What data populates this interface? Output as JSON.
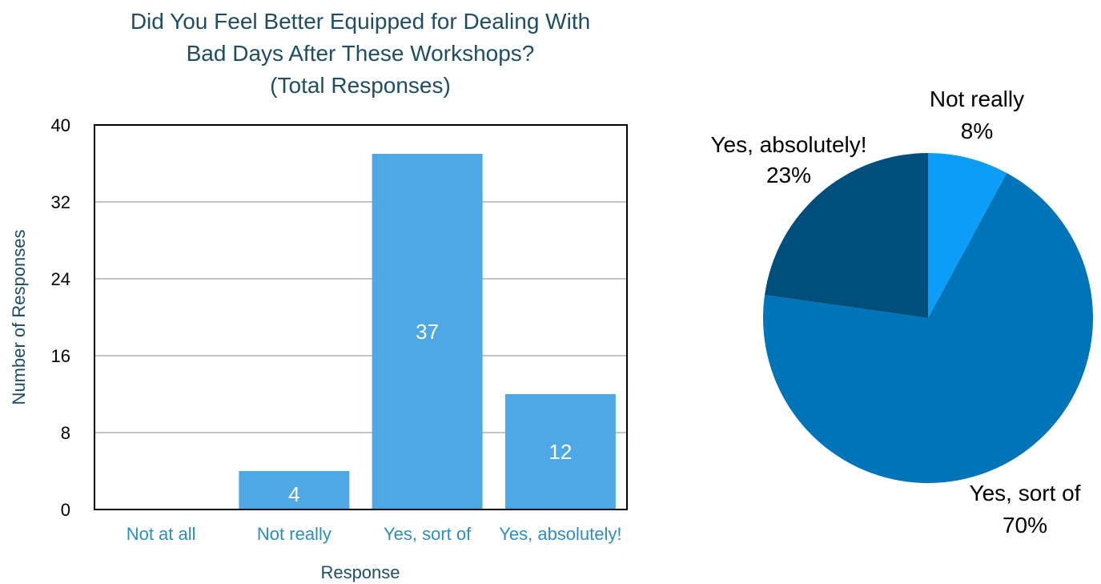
{
  "chart_data": [
    {
      "type": "bar",
      "title_lines": [
        "Did You Feel Better Equipped for Dealing With",
        "Bad Days After These Workshops?",
        "(Total Responses)"
      ],
      "xlabel": "Response",
      "ylabel": "Number of Responses",
      "categories": [
        "Not at all",
        "Not really",
        "Yes, sort of",
        "Yes, absolutely!"
      ],
      "values": [
        0,
        4,
        37,
        12
      ],
      "data_labels": [
        "",
        "4",
        "37",
        "12"
      ],
      "ylim": [
        0,
        40
      ],
      "yticks": [
        0,
        8,
        16,
        24,
        32,
        40
      ],
      "grid": true,
      "colors": {
        "bar": "#4fa8e6",
        "grid": "#c4c4c4",
        "axis": "#000000",
        "title": "#1d4e63",
        "tick_x": "#2a8fbf"
      }
    },
    {
      "type": "pie",
      "slices": [
        {
          "label": "Not really",
          "value": 8,
          "display": "8%",
          "color": "#0b9df7"
        },
        {
          "label": "Yes, sort of",
          "value": 70,
          "display": "70%",
          "color": "#0074b8"
        },
        {
          "label": "Yes, absolutely!",
          "value": 23,
          "display": "23%",
          "color": "#004e7c"
        }
      ]
    }
  ]
}
